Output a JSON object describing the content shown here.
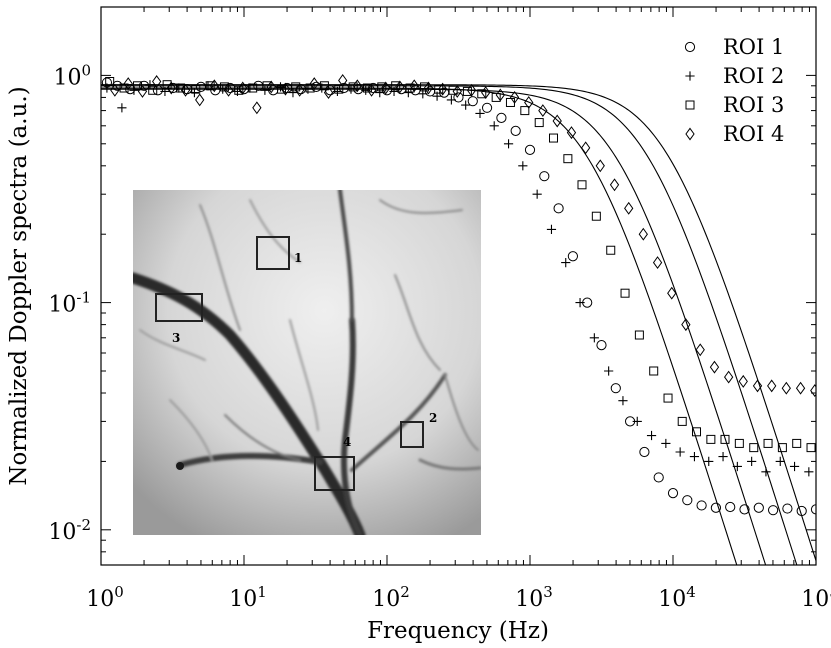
{
  "chart_data": {
    "type": "scatter",
    "xlabel": "Frequency (Hz)",
    "ylabel": "Normalized Doppler spectra (a.u.)",
    "x_scale": "log",
    "y_scale": "log",
    "xlim": [
      1,
      100000
    ],
    "ylim": [
      0.007,
      2
    ],
    "grid": false,
    "legend_position": "top-right",
    "x_ticks": [
      {
        "value": 1,
        "base": "10",
        "exp": "0"
      },
      {
        "value": 10,
        "base": "10",
        "exp": "1"
      },
      {
        "value": 100,
        "base": "10",
        "exp": "2"
      },
      {
        "value": 1000,
        "base": "10",
        "exp": "3"
      },
      {
        "value": 10000,
        "base": "10",
        "exp": "4"
      },
      {
        "value": 100000,
        "base": "10",
        "exp": "5"
      }
    ],
    "y_ticks": [
      {
        "value": 0.01,
        "base": "10",
        "exp": "-2"
      },
      {
        "value": 0.1,
        "base": "10",
        "exp": "-1"
      },
      {
        "value": 1,
        "base": "10",
        "exp": "0"
      }
    ],
    "series": [
      {
        "name": "ROI 1",
        "marker": "circle",
        "level": 0.88,
        "fc": 2500,
        "floor": 0.0125,
        "x": [
          1.1,
          1.3,
          1.6,
          2,
          2.5,
          3.2,
          4,
          5,
          6.3,
          8,
          10,
          12.6,
          16,
          20,
          25,
          32,
          40,
          50,
          63,
          80,
          100,
          126,
          158,
          200,
          251,
          316,
          398,
          501,
          631,
          794,
          1000,
          1259,
          1585,
          1995,
          2512,
          3162,
          3981,
          5012,
          6310,
          7943,
          10000,
          12589,
          15849,
          19953,
          25119,
          31623,
          39811,
          50119,
          63096,
          79433,
          100000
        ],
        "y": [
          0.93,
          0.9,
          0.87,
          0.9,
          0.86,
          0.88,
          0.87,
          0.89,
          0.86,
          0.88,
          0.87,
          0.9,
          0.86,
          0.88,
          0.87,
          0.89,
          0.86,
          0.88,
          0.87,
          0.88,
          0.86,
          0.87,
          0.86,
          0.85,
          0.84,
          0.8,
          0.77,
          0.72,
          0.65,
          0.57,
          0.47,
          0.36,
          0.26,
          0.16,
          0.1,
          0.065,
          0.042,
          0.03,
          0.022,
          0.017,
          0.0145,
          0.0135,
          0.0128,
          0.0125,
          0.0126,
          0.0123,
          0.0125,
          0.0122,
          0.0124,
          0.0121,
          0.0123
        ]
      },
      {
        "name": "ROI 2",
        "marker": "plus",
        "level": 0.87,
        "fc": 4000,
        "floor": 0.02,
        "x": [
          1.1,
          1.4,
          1.7,
          2.2,
          2.8,
          3.5,
          4.5,
          5.6,
          7.1,
          9,
          11,
          14,
          18,
          22,
          28,
          35,
          45,
          56,
          71,
          89,
          112,
          141,
          178,
          224,
          282,
          355,
          447,
          562,
          708,
          891,
          1122,
          1413,
          1778,
          2239,
          2818,
          3548,
          4467,
          5623,
          7079,
          8913,
          11220,
          14125,
          17783,
          22387,
          28184,
          35481,
          44668,
          56234,
          70795,
          89125
        ],
        "y": [
          0.88,
          0.72,
          0.86,
          0.91,
          0.85,
          0.88,
          0.84,
          0.9,
          0.87,
          0.85,
          0.88,
          0.86,
          0.89,
          0.84,
          0.87,
          0.88,
          0.85,
          0.87,
          0.86,
          0.84,
          0.85,
          0.84,
          0.83,
          0.81,
          0.78,
          0.74,
          0.68,
          0.6,
          0.5,
          0.4,
          0.3,
          0.21,
          0.15,
          0.1,
          0.07,
          0.05,
          0.037,
          0.03,
          0.026,
          0.024,
          0.022,
          0.021,
          0.02,
          0.021,
          0.019,
          0.02,
          0.018,
          0.02,
          0.019,
          0.018
        ]
      },
      {
        "name": "ROI 3",
        "marker": "square",
        "level": 0.9,
        "fc": 6500,
        "floor": 0.023,
        "x": [
          1.15,
          1.45,
          1.8,
          2.3,
          2.9,
          3.6,
          4.6,
          5.8,
          7.3,
          9.2,
          11.5,
          14.5,
          18.3,
          23,
          29,
          36.5,
          46,
          58,
          73,
          92,
          115,
          145,
          183,
          230,
          290,
          365,
          460,
          580,
          730,
          920,
          1160,
          1460,
          1840,
          2310,
          2910,
          3670,
          4620,
          5820,
          7330,
          9230,
          11600,
          14600,
          18400,
          23100,
          29100,
          36700,
          46200,
          58200,
          73300,
          92300
        ],
        "y": [
          0.94,
          0.88,
          0.9,
          0.86,
          0.91,
          0.88,
          0.87,
          0.9,
          0.89,
          0.86,
          0.88,
          0.9,
          0.87,
          0.89,
          0.88,
          0.9,
          0.87,
          0.89,
          0.88,
          0.89,
          0.9,
          0.88,
          0.89,
          0.87,
          0.86,
          0.85,
          0.83,
          0.8,
          0.76,
          0.7,
          0.62,
          0.53,
          0.43,
          0.33,
          0.24,
          0.17,
          0.11,
          0.072,
          0.05,
          0.038,
          0.03,
          0.027,
          0.025,
          0.025,
          0.024,
          0.023,
          0.024,
          0.023,
          0.024,
          0.023
        ]
      },
      {
        "name": "ROI 4",
        "marker": "diamond",
        "level": 0.91,
        "fc": 9000,
        "floor": 0.042,
        "x": [
          1.25,
          1.55,
          1.95,
          2.45,
          3.1,
          3.9,
          4.9,
          6.2,
          7.8,
          9.8,
          12.3,
          15.5,
          19.5,
          24.5,
          31,
          39,
          49,
          62,
          78,
          98,
          123,
          155,
          195,
          245,
          310,
          390,
          490,
          620,
          780,
          980,
          1230,
          1550,
          1950,
          2450,
          3100,
          3900,
          4900,
          6200,
          7800,
          9800,
          12300,
          15500,
          19500,
          24500,
          31000,
          39000,
          49000,
          62000,
          78000,
          98000
        ],
        "y": [
          0.86,
          0.92,
          0.85,
          0.94,
          0.88,
          0.86,
          0.78,
          0.9,
          0.86,
          0.88,
          0.72,
          0.89,
          0.87,
          0.86,
          0.92,
          0.84,
          0.95,
          0.9,
          0.86,
          0.88,
          0.89,
          0.9,
          0.88,
          0.87,
          0.85,
          0.86,
          0.84,
          0.82,
          0.8,
          0.76,
          0.7,
          0.63,
          0.56,
          0.48,
          0.4,
          0.33,
          0.26,
          0.2,
          0.15,
          0.11,
          0.08,
          0.062,
          0.052,
          0.047,
          0.045,
          0.043,
          0.043,
          0.042,
          0.042,
          0.041
        ]
      }
    ],
    "inset": {
      "region_labels": [
        "1",
        "2",
        "3",
        "4"
      ]
    }
  }
}
